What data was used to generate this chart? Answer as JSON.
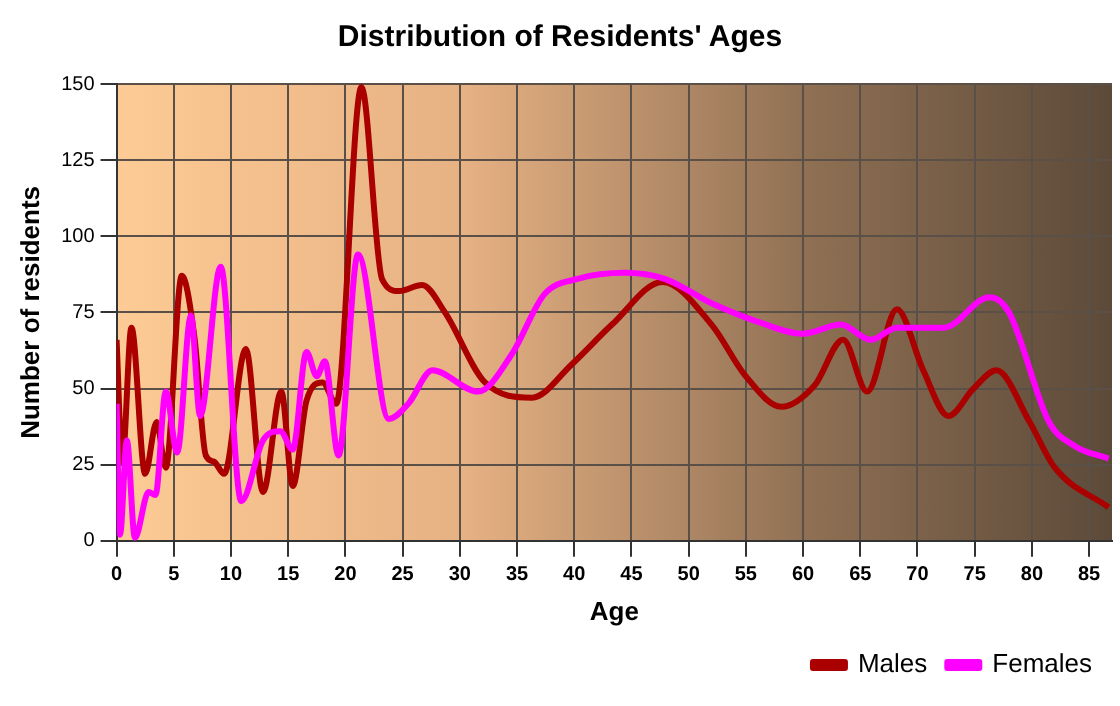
{
  "chart_data": {
    "type": "line",
    "title": "Distribution of Residents' Ages",
    "xlabel": "Age",
    "ylabel": "Number of residents",
    "xlim": [
      0,
      87
    ],
    "xticks": [
      0,
      5,
      10,
      15,
      20,
      25,
      30,
      35,
      40,
      45,
      50,
      55,
      60,
      65,
      70,
      75,
      80,
      85
    ],
    "ylim": [
      0,
      150
    ],
    "yticks": [
      0,
      25,
      50,
      75,
      100,
      125,
      150
    ],
    "grid": true,
    "legend": "bottom right",
    "marker": "none",
    "line_style": "solid",
    "series": [
      {
        "name": "Males",
        "color": "#aa0000",
        "x": [
          0,
          0.5,
          1.3,
          2.5,
          3.5,
          4.3,
          5.7,
          6.8,
          7.8,
          8.5,
          9.4,
          11.3,
          12.8,
          14.4,
          15.4,
          16.6,
          18,
          19.2,
          21.4,
          23.2,
          24.7,
          26.7,
          28.7,
          32.2,
          36.3,
          39.8,
          43.3,
          47.7,
          52,
          55,
          58.1,
          61,
          63.5,
          65.6,
          68.2,
          70.5,
          72.7,
          74.9,
          76.9,
          79.8,
          82,
          86.7
        ],
        "values": [
          66,
          26,
          70,
          22,
          39,
          24,
          87,
          67,
          28,
          26,
          22,
          63,
          16,
          49,
          18,
          46,
          52,
          45,
          149,
          86,
          82,
          84,
          75,
          52,
          47,
          58,
          71,
          85,
          71,
          54,
          44,
          51,
          66,
          49,
          76,
          56,
          41,
          50,
          56,
          39,
          24,
          11
        ]
      },
      {
        "name": "Females",
        "color": "#ff00ff",
        "x": [
          0,
          0.3,
          0.9,
          1.6,
          2.8,
          3.4,
          4.3,
          5.3,
          6.5,
          7.3,
          9.1,
          10.9,
          12.8,
          14.3,
          15.4,
          16.6,
          17.5,
          18.2,
          19.4,
          21.1,
          23.8,
          25.5,
          27.6,
          31.6,
          34.5,
          37.4,
          40.3,
          44.4,
          47.9,
          52,
          56,
          60,
          63.3,
          65.9,
          68.2,
          72.3,
          76.3,
          78,
          81.5,
          83.8,
          86.7
        ],
        "values": [
          45,
          2,
          33,
          1,
          16,
          15,
          49,
          29,
          74,
          41,
          90,
          13,
          33,
          36,
          30,
          62,
          54,
          59,
          28,
          94,
          40,
          45,
          56,
          49,
          61,
          81,
          86,
          88,
          86,
          78,
          72,
          68,
          71,
          66,
          70,
          70,
          80,
          75,
          39,
          31,
          27
        ]
      }
    ]
  }
}
